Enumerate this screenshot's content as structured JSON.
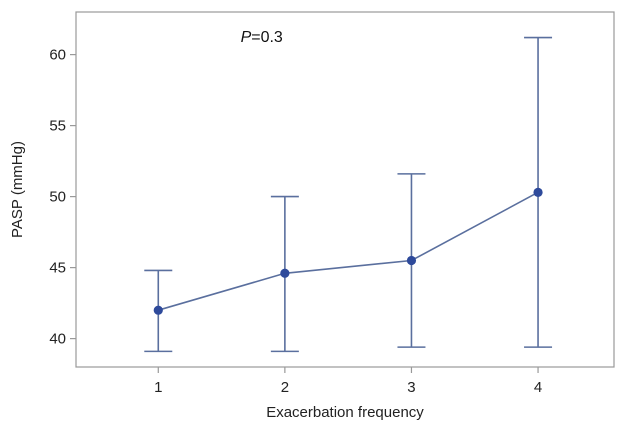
{
  "chart_data": {
    "type": "line",
    "xlabel": "Exacerbation frequency",
    "ylabel": "PASP (mmHg)",
    "x": [
      1,
      2,
      3,
      4
    ],
    "x_tick_labels": [
      "1",
      "2",
      "3",
      "4"
    ],
    "xlim": [
      0.35,
      4.6
    ],
    "ylim": [
      38,
      63
    ],
    "y_ticks": [
      40,
      45,
      50,
      55,
      60
    ],
    "grid": false,
    "series": [
      {
        "values": [
          42.0,
          44.6,
          45.5,
          50.3
        ],
        "error_low": [
          39.1,
          39.1,
          39.4,
          39.4
        ],
        "error_high": [
          44.8,
          50.0,
          51.6,
          61.2
        ],
        "color": "#5a6f9e",
        "marker_color": "#2e4a9b"
      }
    ],
    "annotation": {
      "p_label": "P",
      "p_value": "=0.3",
      "x": 1.65,
      "y": 60.9
    }
  }
}
